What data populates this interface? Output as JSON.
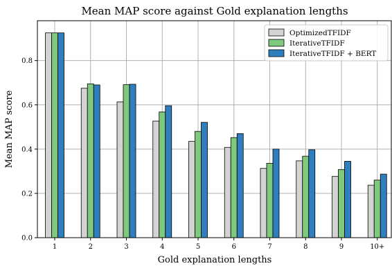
{
  "chart_data": {
    "type": "bar",
    "title": "Mean MAP score against Gold explanation lengths",
    "xlabel": "Gold explanation lengths",
    "ylabel": "Mean MAP score",
    "categories": [
      "1",
      "2",
      "3",
      "4",
      "5",
      "6",
      "7",
      "8",
      "9",
      "10+"
    ],
    "ylim": [
      0,
      0.98
    ],
    "yticks": [
      "0.0",
      "0.2",
      "0.4",
      "0.6",
      "0.8"
    ],
    "grid": true,
    "legend_position": "top-right",
    "series": [
      {
        "name": "OptimizedTFIDF",
        "color": "#d3d3d3",
        "values": [
          0.925,
          0.675,
          0.613,
          0.527,
          0.435,
          0.408,
          0.313,
          0.347,
          0.277,
          0.237
        ]
      },
      {
        "name": "IterativeTFIDF",
        "color": "#7fc97f",
        "values": [
          0.925,
          0.695,
          0.691,
          0.568,
          0.48,
          0.452,
          0.336,
          0.368,
          0.308,
          0.26
        ]
      },
      {
        "name": "IterativeTFIDF + BERT",
        "color": "#2f7fbf",
        "values": [
          0.925,
          0.69,
          0.693,
          0.596,
          0.521,
          0.47,
          0.4,
          0.397,
          0.345,
          0.287
        ]
      }
    ]
  }
}
